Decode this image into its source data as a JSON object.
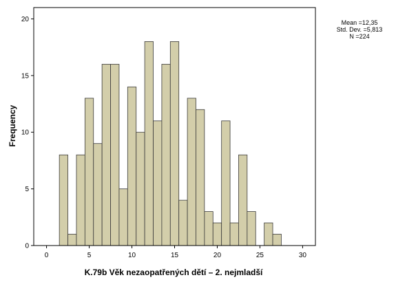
{
  "chart_data": {
    "type": "bar",
    "xlabel": "K.79b Věk nezaopatřených dětí – 2. nejmladší",
    "ylabel": "Frequency",
    "xlim": [
      -1.5,
      31.5
    ],
    "ylim": [
      0,
      21
    ],
    "xticks": [
      "0",
      "5",
      "10",
      "15",
      "20",
      "25",
      "30"
    ],
    "yticks": [
      "0",
      "5",
      "10",
      "15",
      "20"
    ],
    "bar_color": "#d3ceaa",
    "edge_color": "#3a3a3a",
    "bins": [
      {
        "x": 2,
        "value": 8
      },
      {
        "x": 3,
        "value": 1
      },
      {
        "x": 4,
        "value": 8
      },
      {
        "x": 5,
        "value": 13
      },
      {
        "x": 6,
        "value": 9
      },
      {
        "x": 7,
        "value": 16
      },
      {
        "x": 8,
        "value": 16
      },
      {
        "x": 9,
        "value": 5
      },
      {
        "x": 10,
        "value": 14
      },
      {
        "x": 11,
        "value": 10
      },
      {
        "x": 12,
        "value": 18
      },
      {
        "x": 13,
        "value": 11
      },
      {
        "x": 14,
        "value": 16
      },
      {
        "x": 15,
        "value": 18
      },
      {
        "x": 16,
        "value": 4
      },
      {
        "x": 17,
        "value": 13
      },
      {
        "x": 18,
        "value": 12
      },
      {
        "x": 19,
        "value": 3
      },
      {
        "x": 20,
        "value": 2
      },
      {
        "x": 21,
        "value": 11
      },
      {
        "x": 22,
        "value": 2
      },
      {
        "x": 23,
        "value": 8
      },
      {
        "x": 24,
        "value": 3
      },
      {
        "x": 26,
        "value": 2
      },
      {
        "x": 27,
        "value": 1
      }
    ]
  },
  "stats": {
    "mean": "Mean =12,35",
    "std": "Std. Dev. =5,813",
    "n": "N =224"
  }
}
